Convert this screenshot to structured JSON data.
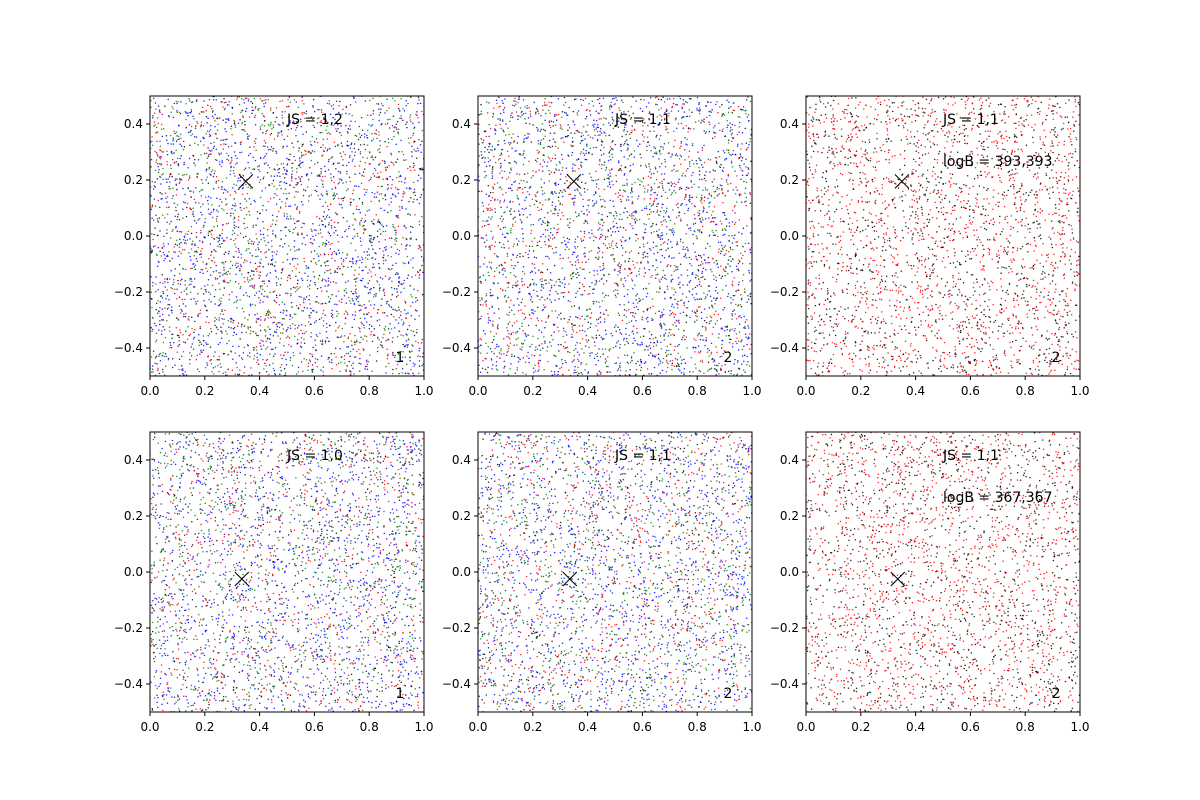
{
  "chart_data": [
    {
      "type": "scatter",
      "panel": "1",
      "xlim": [
        0.0,
        1.0
      ],
      "ylim": [
        -0.5,
        0.5
      ],
      "xticks": [
        "0.0",
        "0.2",
        "0.4",
        "0.6",
        "0.8",
        "1.0"
      ],
      "yticks": [
        "−0.4",
        "−0.2",
        "0.0",
        "0.2",
        "0.4"
      ],
      "marker": {
        "x": 0.35,
        "y": 0.195,
        "symbol": "x"
      },
      "annotations": [
        "JS = 1,2"
      ],
      "corner_label": "1",
      "point_colors": [
        "#0000ff",
        "#ff0000",
        "#008000",
        "#000000"
      ],
      "point_count_per_color": [
        1400,
        800,
        800,
        500
      ],
      "grid": false
    },
    {
      "type": "scatter",
      "panel": "2",
      "xlim": [
        0.0,
        1.0
      ],
      "ylim": [
        -0.5,
        0.5
      ],
      "xticks": [
        "0.0",
        "0.2",
        "0.4",
        "0.6",
        "0.8",
        "1.0"
      ],
      "yticks": [
        "−0.4",
        "−0.2",
        "0.0",
        "0.2",
        "0.4"
      ],
      "marker": {
        "x": 0.35,
        "y": 0.195,
        "symbol": "x"
      },
      "annotations": [
        "JS = 1,1"
      ],
      "corner_label": "2",
      "point_colors": [
        "#0000ff",
        "#ff0000",
        "#008000",
        "#000000"
      ],
      "point_count_per_color": [
        1400,
        800,
        800,
        500
      ],
      "grid": false
    },
    {
      "type": "scatter",
      "panel": "3",
      "xlim": [
        0.0,
        1.0
      ],
      "ylim": [
        -0.5,
        0.5
      ],
      "xticks": [
        "0.0",
        "0.2",
        "0.4",
        "0.6",
        "0.8",
        "1.0"
      ],
      "yticks": [
        "−0.4",
        "−0.2",
        "0.0",
        "0.2",
        "0.4"
      ],
      "marker": {
        "x": 0.35,
        "y": 0.195,
        "symbol": "x"
      },
      "annotations": [
        "JS = 1,1",
        "logB = 393,393"
      ],
      "corner_label": "2",
      "point_colors": [
        "#ff0000",
        "#000000"
      ],
      "point_count_per_color": [
        1700,
        1200
      ],
      "grid": false
    },
    {
      "type": "scatter",
      "panel": "4",
      "xlim": [
        0.0,
        1.0
      ],
      "ylim": [
        -0.5,
        0.5
      ],
      "xticks": [
        "0.0",
        "0.2",
        "0.4",
        "0.6",
        "0.8",
        "1.0"
      ],
      "yticks": [
        "−0.4",
        "−0.2",
        "0.0",
        "0.2",
        "0.4"
      ],
      "marker": {
        "x": 0.335,
        "y": -0.025,
        "symbol": "x"
      },
      "annotations": [
        "JS = 1,0"
      ],
      "corner_label": "1",
      "point_colors": [
        "#0000ff",
        "#ff0000",
        "#008000",
        "#000000"
      ],
      "point_count_per_color": [
        1400,
        800,
        800,
        500
      ],
      "grid": false
    },
    {
      "type": "scatter",
      "panel": "5",
      "xlim": [
        0.0,
        1.0
      ],
      "ylim": [
        -0.5,
        0.5
      ],
      "xticks": [
        "0.0",
        "0.2",
        "0.4",
        "0.6",
        "0.8",
        "1.0"
      ],
      "yticks": [
        "−0.4",
        "−0.2",
        "0.0",
        "0.2",
        "0.4"
      ],
      "marker": {
        "x": 0.335,
        "y": -0.025,
        "symbol": "x"
      },
      "annotations": [
        "JS = 1,1"
      ],
      "corner_label": "2",
      "point_colors": [
        "#0000ff",
        "#ff0000",
        "#008000",
        "#000000"
      ],
      "point_count_per_color": [
        1400,
        800,
        800,
        500
      ],
      "grid": false
    },
    {
      "type": "scatter",
      "panel": "6",
      "xlim": [
        0.0,
        1.0
      ],
      "ylim": [
        -0.5,
        0.5
      ],
      "xticks": [
        "0.0",
        "0.2",
        "0.4",
        "0.6",
        "0.8",
        "1.0"
      ],
      "yticks": [
        "−0.4",
        "−0.2",
        "0.0",
        "0.2",
        "0.4"
      ],
      "marker": {
        "x": 0.335,
        "y": -0.025,
        "symbol": "x"
      },
      "annotations": [
        "JS = 1,1",
        "logB = 367,367"
      ],
      "corner_label": "2",
      "point_colors": [
        "#ff0000",
        "#000000"
      ],
      "point_count_per_color": [
        1700,
        1200
      ],
      "grid": false
    }
  ]
}
